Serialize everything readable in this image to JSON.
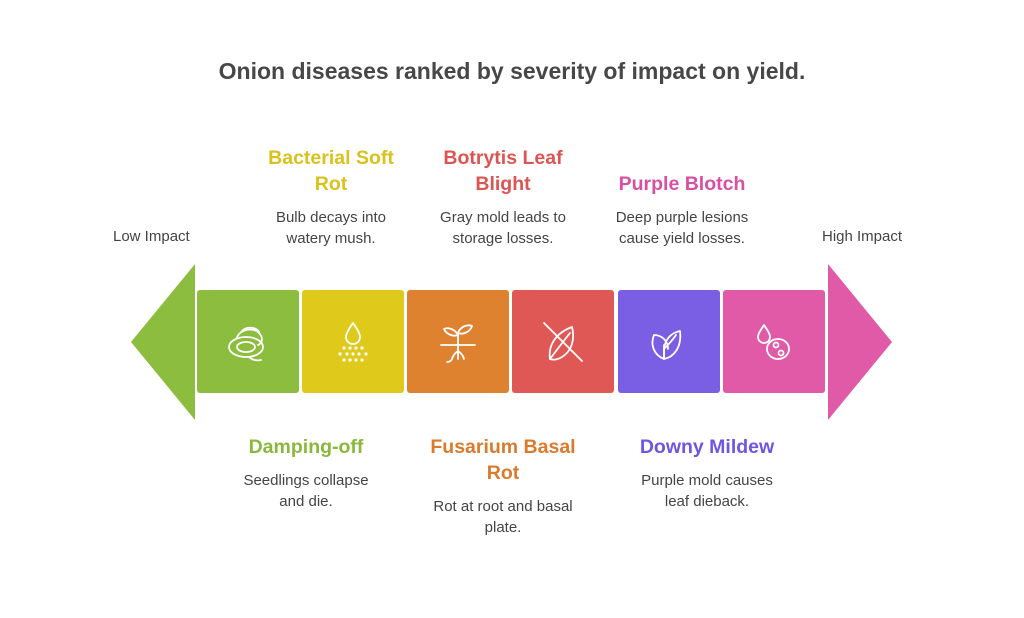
{
  "title": "Onion diseases ranked by severity of impact on yield.",
  "scale": {
    "low_label": "Low Impact",
    "high_label": "High Impact"
  },
  "colors": {
    "green": "#8cbd3e",
    "yellow": "#dfca1c",
    "orange": "#df8230",
    "red": "#e05855",
    "purple": "#7a5ee4",
    "pink": "#e05aa8"
  },
  "diseases": [
    {
      "name": "Damping-off",
      "description": "Seedlings collapse and die.",
      "icon": "onion-bulb-icon",
      "color": "#8cbd3e"
    },
    {
      "name": "Bacterial Soft Rot",
      "description": "Bulb decays into watery mush.",
      "icon": "water-drop-icon",
      "color": "#dfca1c"
    },
    {
      "name": "Fusarium Basal Rot",
      "description": "Rot at root and basal plate.",
      "icon": "sprout-roots-icon",
      "color": "#df8230"
    },
    {
      "name": "Botrytis Leaf Blight",
      "description": "Gray mold leads to storage losses.",
      "icon": "leaf-off-icon",
      "color": "#e05855"
    },
    {
      "name": "Downy Mildew",
      "description": "Purple mold causes leaf dieback.",
      "icon": "leaf-icon",
      "color": "#7a5ee4"
    },
    {
      "name": "Purple Blotch",
      "description": "Deep purple lesions cause yield losses.",
      "icon": "spots-icon",
      "color": "#e05aa8"
    }
  ]
}
